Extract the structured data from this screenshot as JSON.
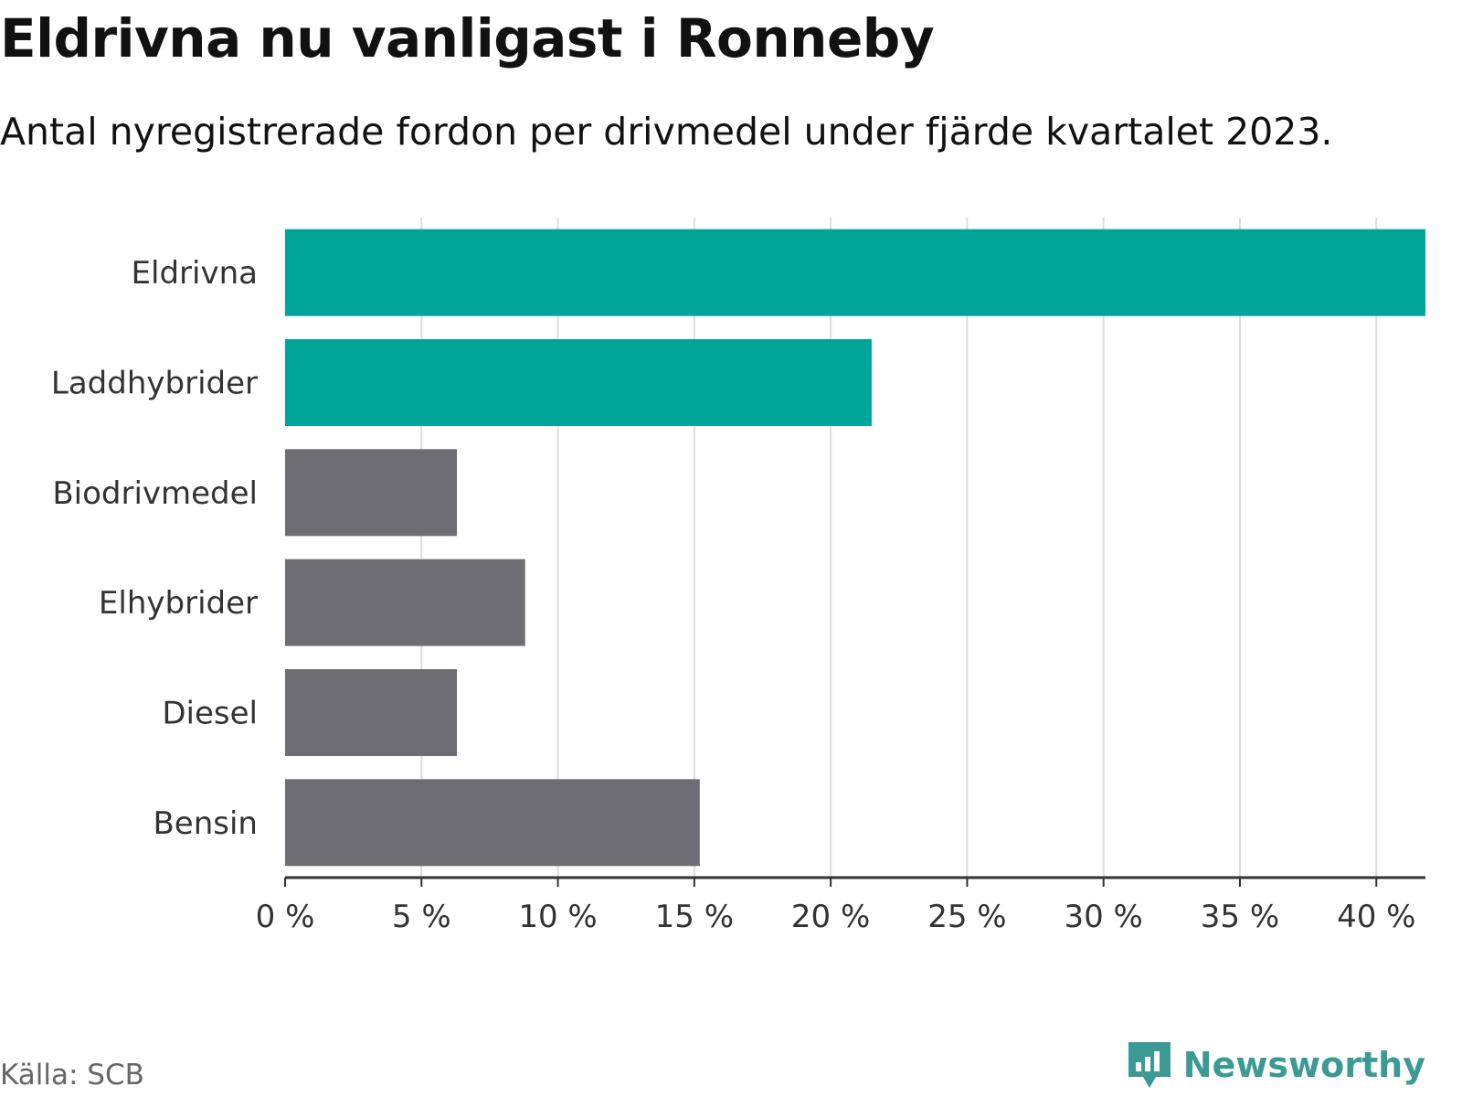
{
  "title": "Eldrivna nu vanligast i Ronneby",
  "subtitle": "Antal nyregistrerade fordon per drivmedel under fjärde kvartalet 2023.",
  "source": "Källa: SCB",
  "brand": "Newsworthy",
  "colors": {
    "highlight": "#00a59a",
    "default": "#6d6d73",
    "grid": "#dddddd",
    "axis": "#333333",
    "brand": "#3b9b94"
  },
  "chart_data": {
    "type": "bar",
    "orientation": "horizontal",
    "categories": [
      "Eldrivna",
      "Laddhybrider",
      "Biodrivmedel",
      "Elhybrider",
      "Diesel",
      "Bensin"
    ],
    "values": [
      41.8,
      21.5,
      6.3,
      8.8,
      6.3,
      15.2
    ],
    "highlighted": [
      true,
      true,
      false,
      false,
      false,
      false
    ],
    "xlim": [
      0,
      41.8
    ],
    "xticks": [
      0,
      5,
      10,
      15,
      20,
      25,
      30,
      35,
      40
    ],
    "xtick_labels": [
      "0 %",
      "5 %",
      "10 %",
      "15 %",
      "20 %",
      "25 %",
      "30 %",
      "35 %",
      "40 %"
    ],
    "grid": true
  }
}
